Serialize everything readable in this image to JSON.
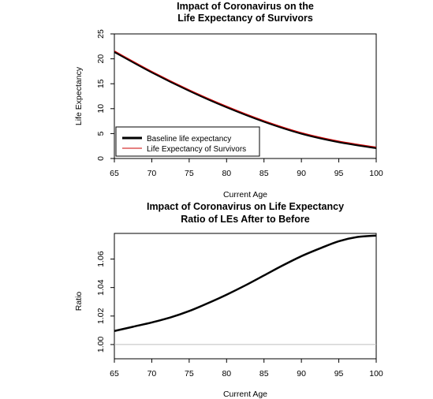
{
  "chart_data": [
    {
      "type": "line",
      "title": "Impact of Coronavirus on the",
      "subtitle": "Life Expectancy of Survivors",
      "xlabel": "Current Age",
      "ylabel": "Life Expectancy",
      "xlim": [
        65,
        100
      ],
      "ylim": [
        0,
        25
      ],
      "xticks": [
        65,
        70,
        75,
        80,
        85,
        90,
        95,
        100
      ],
      "yticks": [
        0,
        5,
        10,
        15,
        20,
        25
      ],
      "legend_position": "bottom-left",
      "x": [
        65,
        70,
        75,
        80,
        85,
        90,
        95,
        100
      ],
      "series": [
        {
          "name": "Baseline life expectancy",
          "color": "#000000",
          "values": [
            21.4,
            17.3,
            13.6,
            10.3,
            7.4,
            5.0,
            3.3,
            2.1
          ]
        },
        {
          "name": "Life Expectancy of Survivors",
          "color": "#cc0000",
          "values": [
            21.6,
            17.5,
            13.8,
            10.5,
            7.6,
            5.2,
            3.5,
            2.3
          ]
        }
      ]
    },
    {
      "type": "line",
      "title": "Impact of Coronavirus on Life Expectancy",
      "subtitle": "Ratio of LEs After to Before",
      "xlabel": "Current Age",
      "ylabel": "Ratio",
      "xlim": [
        65,
        100
      ],
      "ylim": [
        0.99,
        1.078
      ],
      "xticks": [
        65,
        70,
        75,
        80,
        85,
        90,
        95,
        100
      ],
      "yticks": [
        "1.00",
        "1.02",
        "1.04",
        "1.06"
      ],
      "reference_line": 1.0,
      "x": [
        65,
        67.5,
        70,
        72.5,
        75,
        77.5,
        80,
        82.5,
        85,
        87.5,
        90,
        92.5,
        95,
        97.5,
        100
      ],
      "series": [
        {
          "color": "#000000",
          "values": [
            1.0095,
            1.0125,
            1.0155,
            1.019,
            1.0235,
            1.029,
            1.035,
            1.0415,
            1.0485,
            1.0555,
            1.062,
            1.0675,
            1.0725,
            1.0755,
            1.0765
          ]
        }
      ]
    }
  ]
}
